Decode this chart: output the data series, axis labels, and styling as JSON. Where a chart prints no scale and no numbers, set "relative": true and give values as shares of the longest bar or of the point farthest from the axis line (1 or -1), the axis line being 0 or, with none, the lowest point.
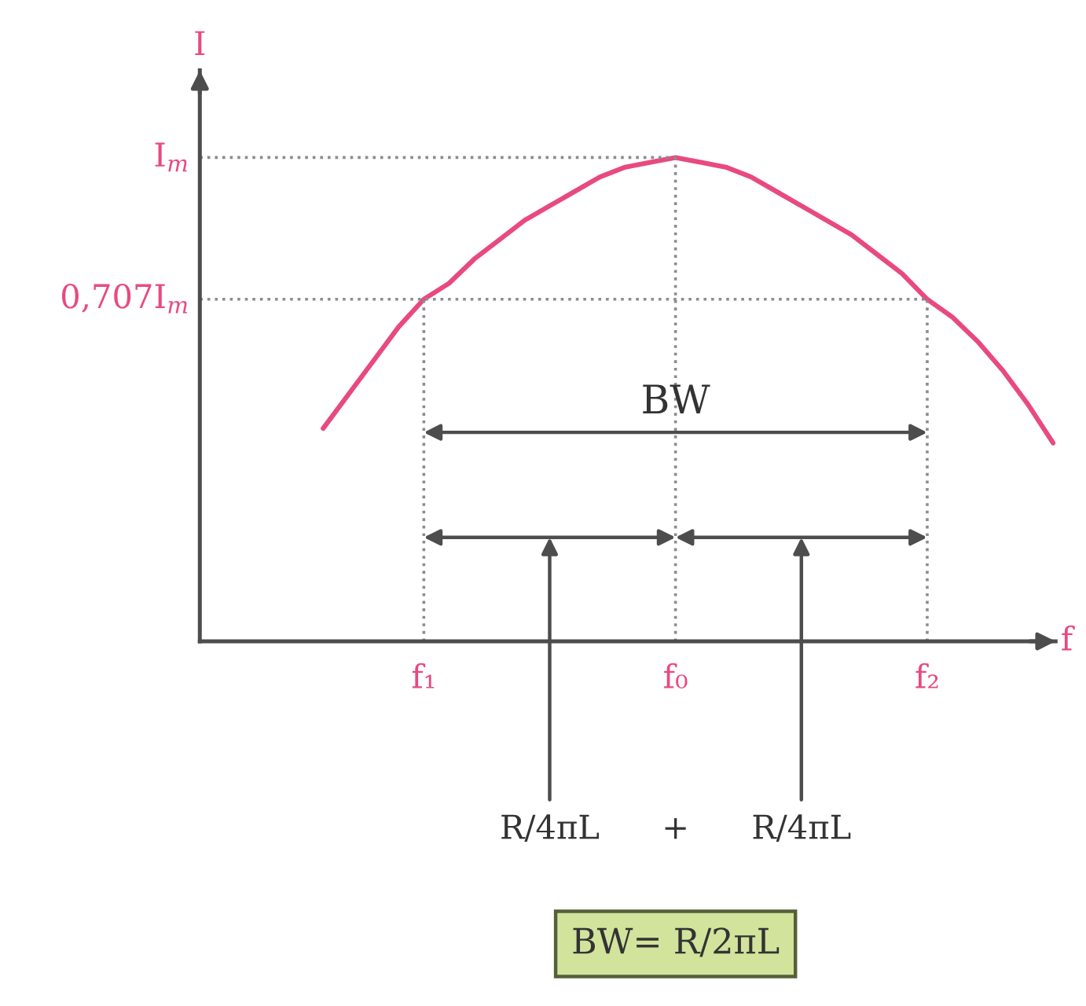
{
  "chart_data": {
    "type": "line",
    "relative": true,
    "categories": [
      null,
      null,
      null,
      null,
      "f₁",
      null,
      null,
      null,
      null,
      null,
      null,
      null,
      null,
      null,
      "f₀",
      null,
      null,
      null,
      null,
      null,
      null,
      null,
      null,
      null,
      "f₂",
      null,
      null,
      null,
      null,
      null
    ],
    "values": [
      0.44,
      0.51,
      0.58,
      0.65,
      0.707,
      0.74,
      0.79,
      0.83,
      0.87,
      0.9,
      0.93,
      0.96,
      0.98,
      0.99,
      1,
      0.99,
      0.98,
      0.96,
      0.93,
      0.9,
      0.87,
      0.84,
      0.8,
      0.76,
      0.707,
      0.67,
      0.62,
      0.56,
      0.49,
      0.41
    ],
    "color": "#e84a7f",
    "xlabel": "f",
    "ylabel": "I",
    "grid": "x",
    "ref_lines": [
      {
        "axis": "y",
        "value": 1,
        "label": "I$_{m}$",
        "color": "#8c8c8c",
        "line_style": "dotted"
      },
      {
        "axis": "y",
        "value": 0.707,
        "label": "0,707I$_{m}$",
        "color": "#8c8c8c",
        "line_style": "dotted"
      }
    ],
    "annotations": [
      "BW",
      "R/4πL",
      "+",
      "R/4πL",
      "BW= R/2πL"
    ]
  }
}
